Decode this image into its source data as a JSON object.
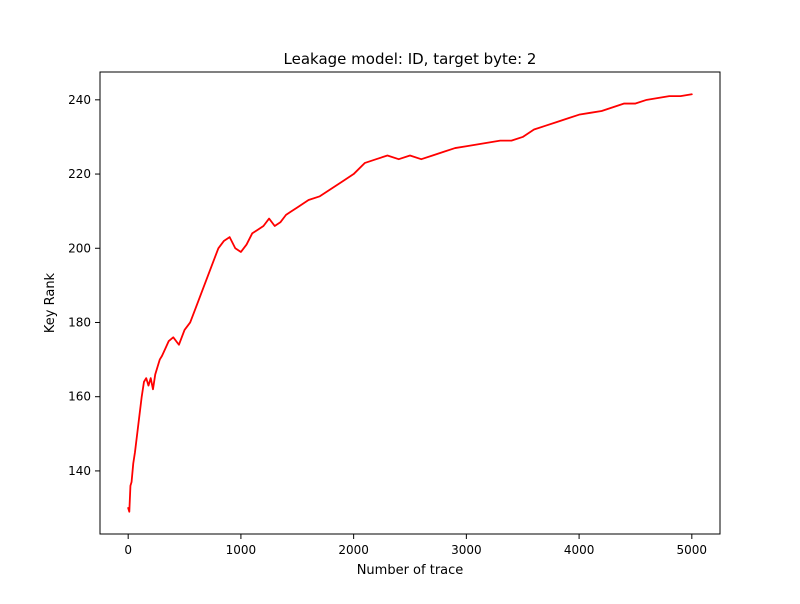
{
  "chart_data": {
    "type": "line",
    "title": "Leakage model: ID, target byte: 2",
    "xlabel": "Number of trace",
    "ylabel": "Key Rank",
    "xlim": [
      -250,
      5250
    ],
    "ylim": [
      123,
      247.5
    ],
    "x_ticks": [
      0,
      1000,
      2000,
      3000,
      4000,
      5000
    ],
    "y_ticks": [
      140,
      160,
      180,
      200,
      220,
      240
    ],
    "x_tick_labels": [
      "0",
      "1000",
      "2000",
      "3000",
      "4000",
      "5000"
    ],
    "y_tick_labels": [
      "140",
      "160",
      "180",
      "200",
      "220",
      "240"
    ],
    "grid": false,
    "series": [
      {
        "color": "#ff0000",
        "x": [
          0,
          10,
          20,
          30,
          45,
          60,
          80,
          100,
          120,
          140,
          160,
          180,
          200,
          220,
          240,
          260,
          280,
          300,
          330,
          360,
          400,
          450,
          500,
          550,
          600,
          650,
          700,
          750,
          800,
          850,
          900,
          950,
          1000,
          1050,
          1100,
          1150,
          1200,
          1250,
          1300,
          1350,
          1400,
          1450,
          1500,
          1600,
          1700,
          1800,
          1900,
          2000,
          2100,
          2200,
          2300,
          2400,
          2500,
          2600,
          2700,
          2800,
          2900,
          3000,
          3100,
          3200,
          3300,
          3400,
          3500,
          3600,
          3700,
          3800,
          3900,
          4000,
          4100,
          4200,
          4300,
          4400,
          4500,
          4600,
          4700,
          4800,
          4900,
          5000
        ],
        "y": [
          130,
          129,
          136,
          137,
          142,
          145,
          150,
          155,
          160,
          164,
          165,
          163,
          165,
          162,
          166,
          168,
          170,
          171,
          173,
          175,
          176,
          174,
          178,
          180,
          184,
          188,
          192,
          196,
          200,
          202,
          203,
          200,
          199,
          201,
          204,
          205,
          206,
          208,
          206,
          207,
          209,
          210,
          211,
          213,
          214,
          216,
          218,
          220,
          223,
          224,
          225,
          224,
          225,
          224,
          225,
          226,
          227,
          227.5,
          228,
          228.5,
          229,
          229,
          230,
          232,
          233,
          234,
          235,
          236,
          236.5,
          237,
          238,
          239,
          239,
          240,
          240.5,
          241,
          241,
          241.5
        ]
      }
    ]
  }
}
